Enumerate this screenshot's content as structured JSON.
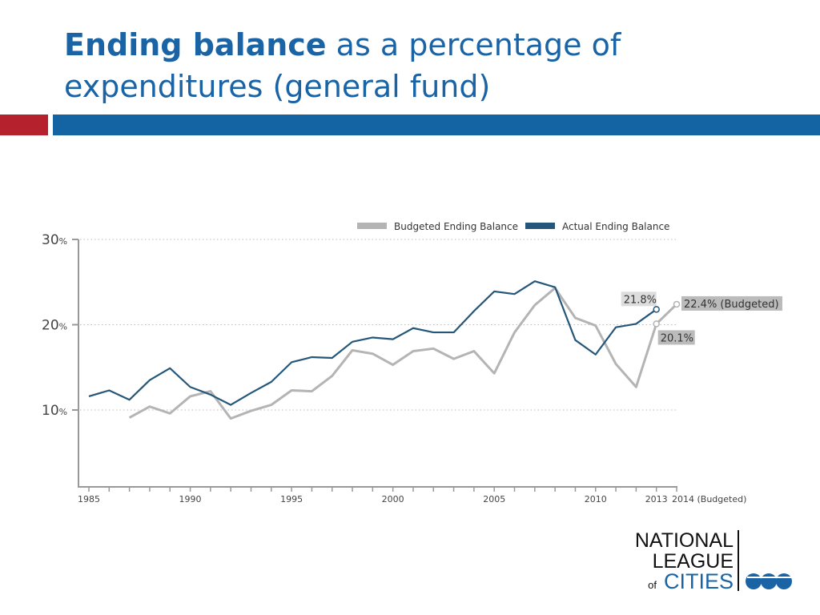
{
  "slide": {
    "title_bold": "Ending balance",
    "title_rest": " as a percentage of",
    "title_line2": "expenditures (general fund)"
  },
  "colors": {
    "title": "#1a64a6",
    "red_accent": "#b5222e",
    "blue_bar": "#1464a4",
    "actual": "#24577a",
    "budgeted": "#b4b4b4"
  },
  "logo": {
    "line1": "NATIONAL",
    "line2": "LEAGUE",
    "of": "of",
    "cities": "CITIES"
  },
  "chart_data": {
    "type": "line",
    "title": "",
    "xlabel": "",
    "ylabel": "",
    "ylim": [
      1,
      30
    ],
    "xlim": [
      1985,
      2014
    ],
    "grid": "horizontal dotted",
    "legend_placement": "top-right",
    "yticks": [
      {
        "value": 30,
        "label": "30",
        "unit": "%"
      },
      {
        "value": 20,
        "label": "20",
        "unit": "%"
      },
      {
        "value": 10,
        "label": "10",
        "unit": "%"
      }
    ],
    "xtick_labels": [
      {
        "value": 1985,
        "label": "1985"
      },
      {
        "value": 1990,
        "label": "1990"
      },
      {
        "value": 1995,
        "label": "1995"
      },
      {
        "value": 2000,
        "label": "2000"
      },
      {
        "value": 2005,
        "label": "2005"
      },
      {
        "value": 2010,
        "label": "2010"
      },
      {
        "value": 2013,
        "label": "2013"
      },
      {
        "value": 2014,
        "label": "2014 (Budgeted)"
      }
    ],
    "series": [
      {
        "name": "Budgeted Ending Balance",
        "color": "#b4b4b4",
        "x": [
          1987,
          1988,
          1989,
          1990,
          1991,
          1992,
          1993,
          1994,
          1995,
          1996,
          1997,
          1998,
          1999,
          2000,
          2001,
          2002,
          2003,
          2004,
          2005,
          2006,
          2007,
          2008,
          2009,
          2010,
          2011,
          2012,
          2013,
          2014
        ],
        "values": [
          9.1,
          10.4,
          9.6,
          11.6,
          12.2,
          9.0,
          9.9,
          10.6,
          12.3,
          12.2,
          14.0,
          17.0,
          16.6,
          15.3,
          16.9,
          17.2,
          16.0,
          16.9,
          14.3,
          19.1,
          22.3,
          24.3,
          20.8,
          19.9,
          15.4,
          12.7,
          20.1,
          22.4
        ]
      },
      {
        "name": "Actual Ending Balance",
        "color": "#24577a",
        "x": [
          1985,
          1986,
          1987,
          1988,
          1989,
          1990,
          1991,
          1992,
          1993,
          1994,
          1995,
          1996,
          1997,
          1998,
          1999,
          2000,
          2001,
          2002,
          2003,
          2004,
          2005,
          2006,
          2007,
          2008,
          2009,
          2010,
          2011,
          2012,
          2013
        ],
        "values": [
          11.6,
          12.3,
          11.2,
          13.5,
          14.9,
          12.7,
          11.8,
          10.6,
          12.0,
          13.3,
          15.6,
          16.2,
          16.1,
          18.0,
          18.5,
          18.3,
          19.6,
          19.1,
          19.1,
          21.6,
          23.9,
          23.6,
          25.1,
          24.4,
          18.2,
          16.5,
          19.7,
          20.1,
          21.8
        ]
      }
    ],
    "annotations": [
      {
        "series": "Actual Ending Balance",
        "x": 2013,
        "y": 21.8,
        "label": "21.8%"
      },
      {
        "series": "Budgeted Ending Balance",
        "x": 2013,
        "y": 20.1,
        "label": "20.1%"
      },
      {
        "series": "Budgeted Ending Balance",
        "x": 2014,
        "y": 22.4,
        "label": "22.4% (Budgeted)"
      }
    ]
  }
}
